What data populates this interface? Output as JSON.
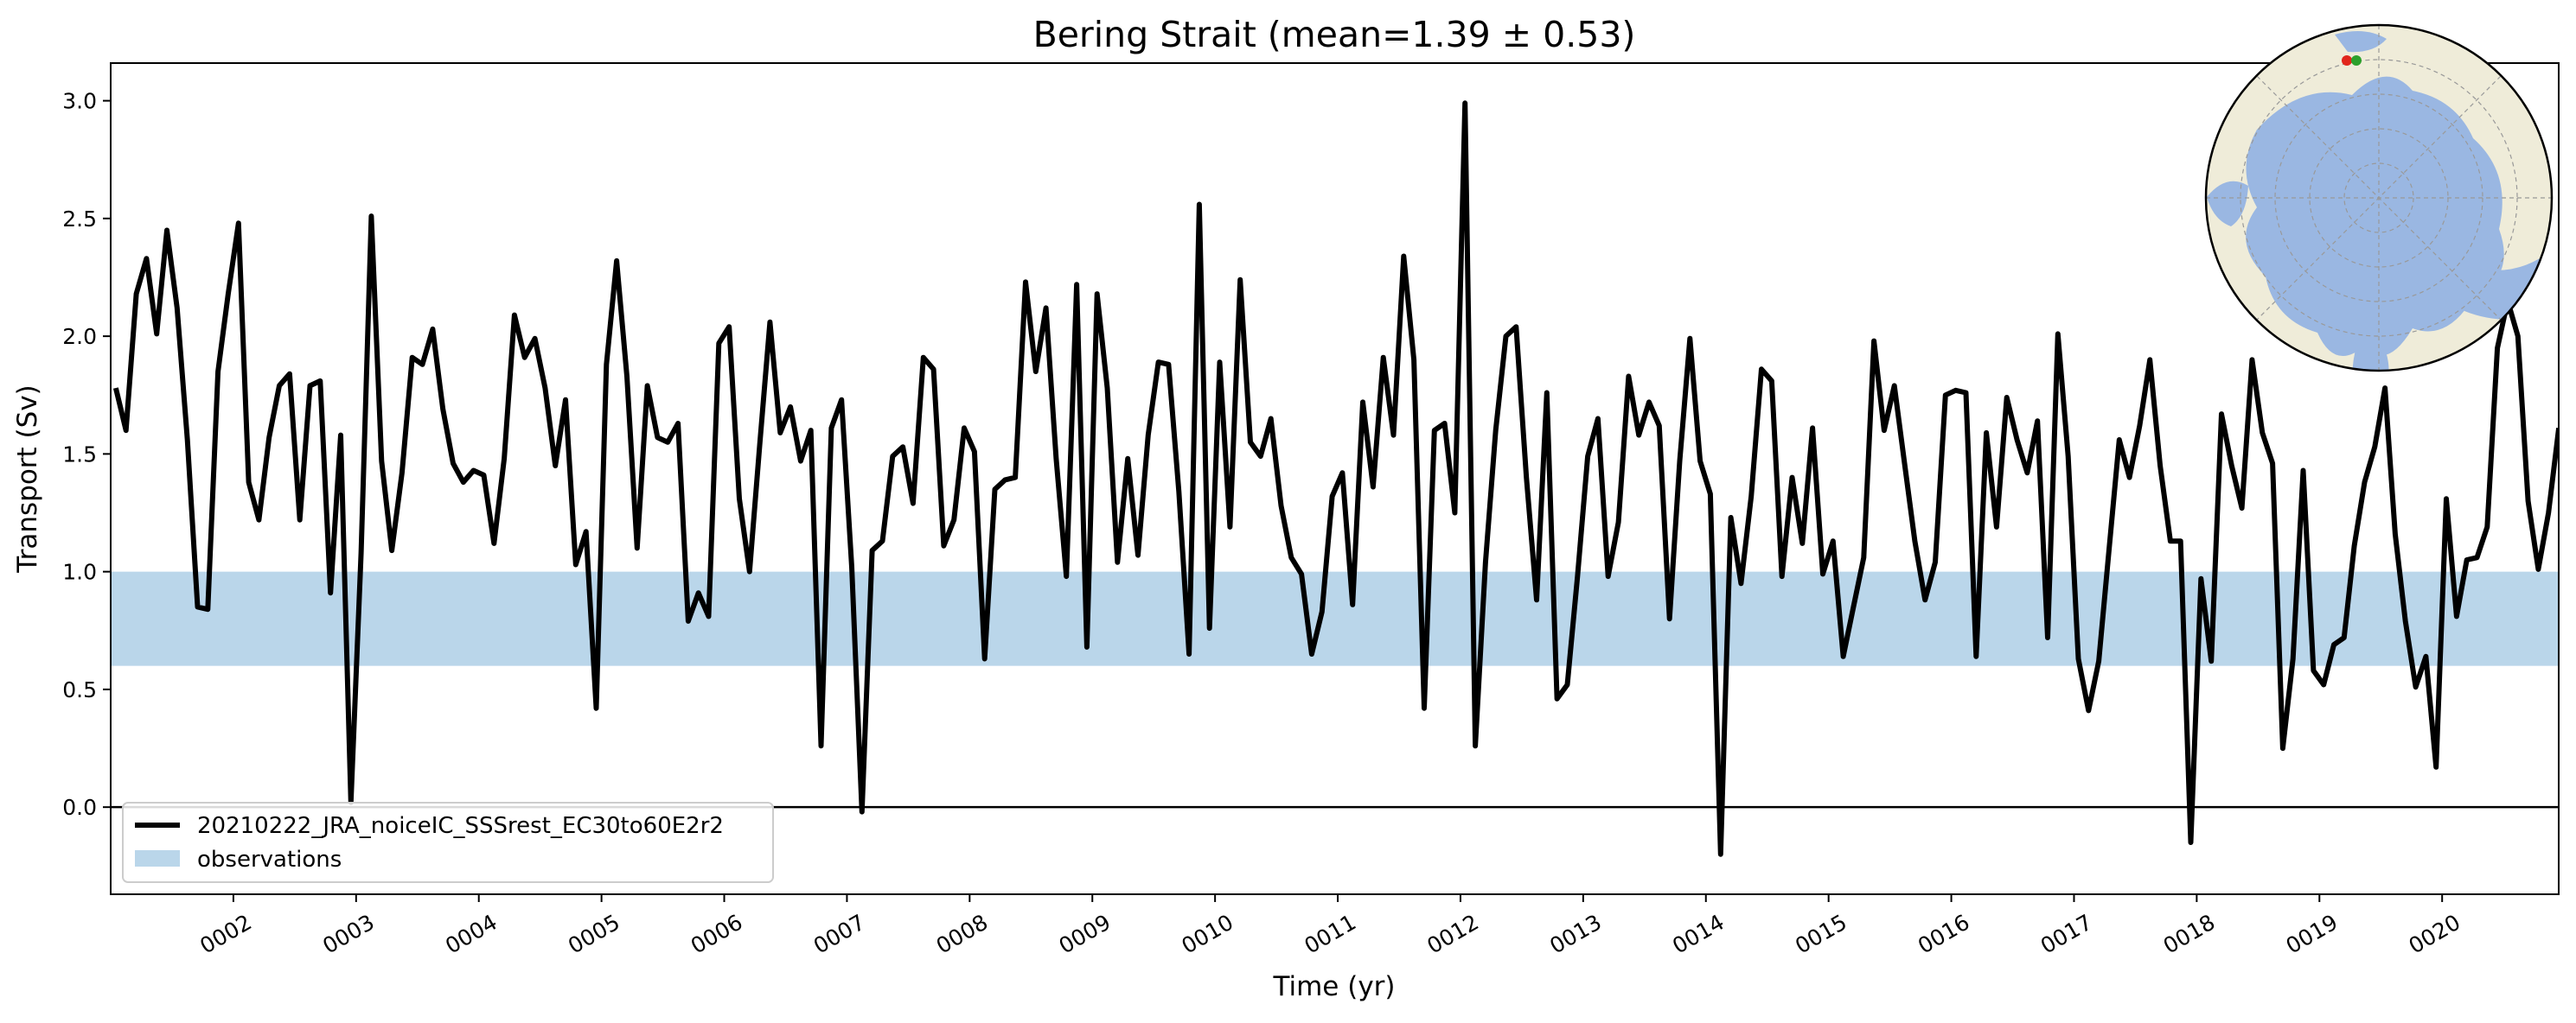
{
  "chart_data": {
    "type": "line",
    "title": "Bering Strait (mean=1.39 ± 0.53)",
    "xlabel": "Time (yr)",
    "ylabel": "Transport (Sv)",
    "xlim": [
      1.0,
      20.95
    ],
    "ylim": [
      -0.37,
      3.16
    ],
    "xticks": [
      {
        "value": 2,
        "label": "0002"
      },
      {
        "value": 3,
        "label": "0003"
      },
      {
        "value": 4,
        "label": "0004"
      },
      {
        "value": 5,
        "label": "0005"
      },
      {
        "value": 6,
        "label": "0006"
      },
      {
        "value": 7,
        "label": "0007"
      },
      {
        "value": 8,
        "label": "0008"
      },
      {
        "value": 9,
        "label": "0009"
      },
      {
        "value": 10,
        "label": "0010"
      },
      {
        "value": 11,
        "label": "0011"
      },
      {
        "value": 12,
        "label": "0012"
      },
      {
        "value": 13,
        "label": "0013"
      },
      {
        "value": 14,
        "label": "0014"
      },
      {
        "value": 15,
        "label": "0015"
      },
      {
        "value": 16,
        "label": "0016"
      },
      {
        "value": 17,
        "label": "0017"
      },
      {
        "value": 18,
        "label": "0018"
      },
      {
        "value": 19,
        "label": "0019"
      },
      {
        "value": 20,
        "label": "0020"
      }
    ],
    "yticks": [
      {
        "value": 0.0,
        "label": "0.0"
      },
      {
        "value": 0.5,
        "label": "0.5"
      },
      {
        "value": 1.0,
        "label": "1.0"
      },
      {
        "value": 1.5,
        "label": "1.5"
      },
      {
        "value": 2.0,
        "label": "2.0"
      },
      {
        "value": 2.5,
        "label": "2.5"
      },
      {
        "value": 3.0,
        "label": "3.0"
      }
    ],
    "zero_line": 0.0,
    "observation_band": {
      "name": "observations",
      "low": 0.6,
      "high": 1.0,
      "color": "#bad6ea"
    },
    "legend_position": "lower-left",
    "grid": false,
    "series": [
      {
        "name": "20210222_JRA_noiceIC_SSSrest_EC30to60E2r2",
        "color": "#000000",
        "x_start": 1.0417,
        "x_step": 0.0833,
        "y": [
          1.78,
          1.6,
          2.18,
          2.33,
          2.01,
          2.45,
          2.12,
          1.56,
          0.85,
          0.84,
          1.85,
          2.18,
          2.48,
          1.38,
          1.22,
          1.57,
          1.79,
          1.84,
          1.22,
          1.79,
          1.81,
          0.91,
          1.58,
          0.02,
          1.08,
          2.51,
          1.47,
          1.09,
          1.42,
          1.91,
          1.88,
          2.03,
          1.69,
          1.46,
          1.38,
          1.43,
          1.41,
          1.12,
          1.48,
          2.09,
          1.91,
          1.99,
          1.78,
          1.45,
          1.73,
          1.03,
          1.17,
          0.42,
          1.88,
          2.32,
          1.83,
          1.1,
          1.79,
          1.57,
          1.55,
          1.63,
          0.79,
          0.91,
          0.81,
          1.97,
          2.04,
          1.31,
          1.0,
          1.54,
          2.06,
          1.59,
          1.7,
          1.47,
          1.6,
          0.26,
          1.61,
          1.73,
          1.02,
          -0.02,
          1.09,
          1.13,
          1.49,
          1.53,
          1.29,
          1.91,
          1.86,
          1.11,
          1.22,
          1.61,
          1.51,
          0.63,
          1.35,
          1.39,
          1.4,
          2.23,
          1.85,
          2.12,
          1.48,
          0.98,
          2.22,
          0.68,
          2.18,
          1.78,
          1.04,
          1.48,
          1.07,
          1.58,
          1.89,
          1.88,
          1.34,
          0.65,
          2.56,
          0.76,
          1.89,
          1.19,
          2.24,
          1.55,
          1.49,
          1.65,
          1.28,
          1.06,
          0.99,
          0.65,
          0.83,
          1.32,
          1.42,
          0.86,
          1.72,
          1.36,
          1.91,
          1.58,
          2.34,
          1.9,
          0.42,
          1.6,
          1.63,
          1.25,
          2.99,
          0.26,
          1.04,
          1.6,
          2.0,
          2.04,
          1.4,
          0.88,
          1.76,
          0.46,
          0.52,
          0.98,
          1.49,
          1.65,
          0.98,
          1.21,
          1.83,
          1.58,
          1.72,
          1.62,
          0.8,
          1.47,
          1.99,
          1.47,
          1.33,
          -0.2,
          1.23,
          0.95,
          1.32,
          1.86,
          1.81,
          0.98,
          1.4,
          1.12,
          1.61,
          0.99,
          1.13,
          0.64,
          0.85,
          1.06,
          1.98,
          1.6,
          1.79,
          1.46,
          1.13,
          0.88,
          1.04,
          1.75,
          1.77,
          1.76,
          0.64,
          1.59,
          1.19,
          1.74,
          1.56,
          1.42,
          1.64,
          0.72,
          2.01,
          1.49,
          0.63,
          0.41,
          0.62,
          1.09,
          1.56,
          1.4,
          1.62,
          1.9,
          1.45,
          1.13,
          1.13,
          -0.15,
          0.97,
          0.62,
          1.67,
          1.45,
          1.27,
          1.9,
          1.59,
          1.46,
          0.25,
          0.63,
          1.43,
          0.58,
          0.52,
          0.69,
          0.72,
          1.11,
          1.38,
          1.53,
          1.78,
          1.16,
          0.79,
          0.51,
          0.64,
          0.17,
          1.31,
          0.81,
          1.05,
          1.06,
          1.19,
          1.95,
          2.15,
          2.0,
          1.3,
          1.01,
          1.25,
          1.61
        ]
      }
    ]
  },
  "inset_map": {
    "label": "polar-stereographic-arctic-map",
    "land_color": "#efecd9",
    "ocean_color": "#9ab7e2",
    "marker_colors": [
      "#e1261c",
      "#2ca02c"
    ]
  }
}
